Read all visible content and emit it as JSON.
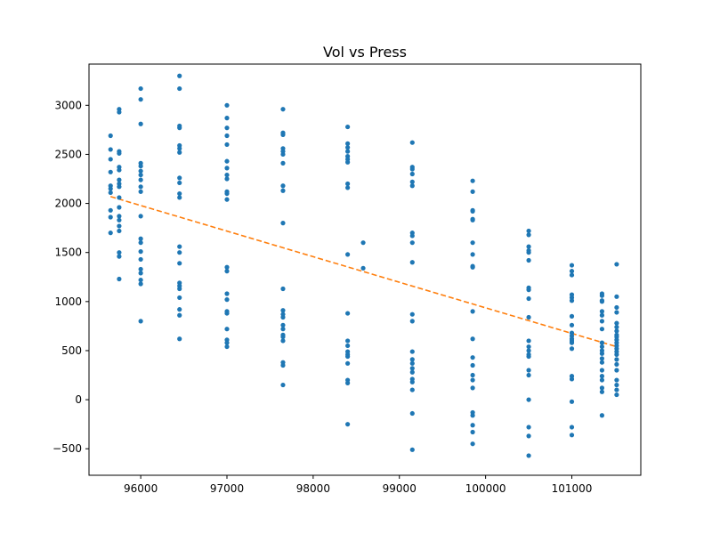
{
  "chart_data": {
    "type": "scatter",
    "title": "Vol vs Press",
    "xlabel": "",
    "ylabel": "",
    "xlim": [
      95400,
      101800
    ],
    "ylim": [
      -770,
      3420
    ],
    "xticks": [
      96000,
      97000,
      98000,
      99000,
      100000,
      101000
    ],
    "yticks": [
      -500,
      0,
      500,
      1000,
      1500,
      2000,
      2500,
      3000
    ],
    "grid": false,
    "colors": {
      "points": "#1f77b4",
      "fit": "#ff7f0e"
    },
    "series": [
      {
        "type": "scatter",
        "points": [
          [
            95650,
            2690
          ],
          [
            95650,
            2550
          ],
          [
            95650,
            2450
          ],
          [
            95650,
            2320
          ],
          [
            95650,
            2180
          ],
          [
            95650,
            2150
          ],
          [
            95650,
            2110
          ],
          [
            95650,
            1930
          ],
          [
            95650,
            1860
          ],
          [
            95650,
            1700
          ],
          [
            95750,
            2960
          ],
          [
            95750,
            2930
          ],
          [
            95750,
            2530
          ],
          [
            95750,
            2510
          ],
          [
            95750,
            2370
          ],
          [
            95750,
            2340
          ],
          [
            95750,
            2240
          ],
          [
            95750,
            2200
          ],
          [
            95750,
            2170
          ],
          [
            95750,
            2060
          ],
          [
            95750,
            1960
          ],
          [
            95750,
            1870
          ],
          [
            95750,
            1830
          ],
          [
            95750,
            1770
          ],
          [
            95750,
            1720
          ],
          [
            95750,
            1500
          ],
          [
            95750,
            1460
          ],
          [
            95750,
            1230
          ],
          [
            96000,
            3170
          ],
          [
            96000,
            3060
          ],
          [
            96000,
            2810
          ],
          [
            96000,
            2410
          ],
          [
            96000,
            2380
          ],
          [
            96000,
            2330
          ],
          [
            96000,
            2290
          ],
          [
            96000,
            2240
          ],
          [
            96000,
            2170
          ],
          [
            96000,
            2120
          ],
          [
            96000,
            1870
          ],
          [
            96000,
            1640
          ],
          [
            96000,
            1600
          ],
          [
            96000,
            1510
          ],
          [
            96000,
            1430
          ],
          [
            96000,
            1330
          ],
          [
            96000,
            1290
          ],
          [
            96000,
            1220
          ],
          [
            96000,
            1180
          ],
          [
            96000,
            800
          ],
          [
            96450,
            3300
          ],
          [
            96450,
            3170
          ],
          [
            96450,
            2790
          ],
          [
            96450,
            2770
          ],
          [
            96450,
            2590
          ],
          [
            96450,
            2560
          ],
          [
            96450,
            2520
          ],
          [
            96450,
            2260
          ],
          [
            96450,
            2210
          ],
          [
            96450,
            2100
          ],
          [
            96450,
            2060
          ],
          [
            96450,
            1560
          ],
          [
            96450,
            1500
          ],
          [
            96450,
            1390
          ],
          [
            96450,
            1190
          ],
          [
            96450,
            1160
          ],
          [
            96450,
            1130
          ],
          [
            96450,
            1040
          ],
          [
            96450,
            920
          ],
          [
            96450,
            860
          ],
          [
            96450,
            620
          ],
          [
            97000,
            3000
          ],
          [
            97000,
            2870
          ],
          [
            97000,
            2770
          ],
          [
            97000,
            2690
          ],
          [
            97000,
            2600
          ],
          [
            97000,
            2430
          ],
          [
            97000,
            2360
          ],
          [
            97000,
            2290
          ],
          [
            97000,
            2250
          ],
          [
            97000,
            2120
          ],
          [
            97000,
            2100
          ],
          [
            97000,
            2040
          ],
          [
            97000,
            1350
          ],
          [
            97000,
            1310
          ],
          [
            97000,
            1080
          ],
          [
            97000,
            1020
          ],
          [
            97000,
            900
          ],
          [
            97000,
            880
          ],
          [
            97000,
            720
          ],
          [
            97000,
            610
          ],
          [
            97000,
            580
          ],
          [
            97000,
            540
          ],
          [
            97650,
            2960
          ],
          [
            97650,
            2720
          ],
          [
            97650,
            2700
          ],
          [
            97650,
            2560
          ],
          [
            97650,
            2530
          ],
          [
            97650,
            2500
          ],
          [
            97650,
            2410
          ],
          [
            97650,
            2180
          ],
          [
            97650,
            2130
          ],
          [
            97650,
            1800
          ],
          [
            97650,
            1130
          ],
          [
            97650,
            910
          ],
          [
            97650,
            870
          ],
          [
            97650,
            840
          ],
          [
            97650,
            760
          ],
          [
            97650,
            720
          ],
          [
            97650,
            660
          ],
          [
            97650,
            640
          ],
          [
            97650,
            600
          ],
          [
            97650,
            380
          ],
          [
            97650,
            350
          ],
          [
            97650,
            150
          ],
          [
            98400,
            2780
          ],
          [
            98400,
            2610
          ],
          [
            98400,
            2570
          ],
          [
            98400,
            2530
          ],
          [
            98400,
            2480
          ],
          [
            98400,
            2450
          ],
          [
            98400,
            2420
          ],
          [
            98400,
            2200
          ],
          [
            98400,
            2160
          ],
          [
            98400,
            1480
          ],
          [
            98400,
            880
          ],
          [
            98400,
            600
          ],
          [
            98400,
            550
          ],
          [
            98400,
            490
          ],
          [
            98400,
            460
          ],
          [
            98400,
            440
          ],
          [
            98400,
            370
          ],
          [
            98400,
            200
          ],
          [
            98400,
            170
          ],
          [
            98400,
            -250
          ],
          [
            98580,
            1600
          ],
          [
            98580,
            1340
          ],
          [
            99150,
            2620
          ],
          [
            99150,
            2370
          ],
          [
            99150,
            2350
          ],
          [
            99150,
            2300
          ],
          [
            99150,
            2220
          ],
          [
            99150,
            2180
          ],
          [
            99150,
            1700
          ],
          [
            99150,
            1670
          ],
          [
            99150,
            1600
          ],
          [
            99150,
            1400
          ],
          [
            99150,
            870
          ],
          [
            99150,
            800
          ],
          [
            99150,
            490
          ],
          [
            99150,
            410
          ],
          [
            99150,
            370
          ],
          [
            99150,
            320
          ],
          [
            99150,
            280
          ],
          [
            99150,
            210
          ],
          [
            99150,
            180
          ],
          [
            99150,
            100
          ],
          [
            99150,
            -140
          ],
          [
            99150,
            -510
          ],
          [
            99850,
            2230
          ],
          [
            99850,
            2120
          ],
          [
            99850,
            1930
          ],
          [
            99850,
            1920
          ],
          [
            99850,
            1840
          ],
          [
            99850,
            1830
          ],
          [
            99850,
            1600
          ],
          [
            99850,
            1480
          ],
          [
            99850,
            1360
          ],
          [
            99850,
            1350
          ],
          [
            99850,
            900
          ],
          [
            99850,
            620
          ],
          [
            99850,
            430
          ],
          [
            99850,
            350
          ],
          [
            99850,
            250
          ],
          [
            99850,
            200
          ],
          [
            99850,
            120
          ],
          [
            99850,
            -130
          ],
          [
            99850,
            -160
          ],
          [
            99850,
            -260
          ],
          [
            99850,
            -330
          ],
          [
            99850,
            -450
          ],
          [
            100500,
            1720
          ],
          [
            100500,
            1680
          ],
          [
            100500,
            1560
          ],
          [
            100500,
            1520
          ],
          [
            100500,
            1500
          ],
          [
            100500,
            1420
          ],
          [
            100500,
            1140
          ],
          [
            100500,
            1120
          ],
          [
            100500,
            1030
          ],
          [
            100500,
            840
          ],
          [
            100500,
            600
          ],
          [
            100500,
            540
          ],
          [
            100500,
            500
          ],
          [
            100500,
            460
          ],
          [
            100500,
            440
          ],
          [
            100500,
            300
          ],
          [
            100500,
            250
          ],
          [
            100500,
            0
          ],
          [
            100500,
            -280
          ],
          [
            100500,
            -370
          ],
          [
            100500,
            -570
          ],
          [
            101000,
            1370
          ],
          [
            101000,
            1310
          ],
          [
            101000,
            1270
          ],
          [
            101000,
            1070
          ],
          [
            101000,
            1040
          ],
          [
            101000,
            1010
          ],
          [
            101000,
            850
          ],
          [
            101000,
            760
          ],
          [
            101000,
            680
          ],
          [
            101000,
            650
          ],
          [
            101000,
            620
          ],
          [
            101000,
            600
          ],
          [
            101000,
            580
          ],
          [
            101000,
            520
          ],
          [
            101000,
            240
          ],
          [
            101000,
            210
          ],
          [
            101000,
            -20
          ],
          [
            101000,
            -280
          ],
          [
            101000,
            -360
          ],
          [
            101350,
            1080
          ],
          [
            101350,
            1060
          ],
          [
            101350,
            1010
          ],
          [
            101350,
            1000
          ],
          [
            101350,
            900
          ],
          [
            101350,
            860
          ],
          [
            101350,
            800
          ],
          [
            101350,
            720
          ],
          [
            101350,
            580
          ],
          [
            101350,
            540
          ],
          [
            101350,
            500
          ],
          [
            101350,
            470
          ],
          [
            101350,
            420
          ],
          [
            101350,
            380
          ],
          [
            101350,
            300
          ],
          [
            101350,
            240
          ],
          [
            101350,
            200
          ],
          [
            101350,
            120
          ],
          [
            101350,
            80
          ],
          [
            101350,
            -160
          ],
          [
            101520,
            1380
          ],
          [
            101520,
            1050
          ],
          [
            101520,
            940
          ],
          [
            101520,
            890
          ],
          [
            101520,
            780
          ],
          [
            101520,
            740
          ],
          [
            101520,
            700
          ],
          [
            101520,
            660
          ],
          [
            101520,
            640
          ],
          [
            101520,
            610
          ],
          [
            101520,
            580
          ],
          [
            101520,
            550
          ],
          [
            101520,
            520
          ],
          [
            101520,
            490
          ],
          [
            101520,
            460
          ],
          [
            101520,
            410
          ],
          [
            101520,
            360
          ],
          [
            101520,
            300
          ],
          [
            101520,
            200
          ],
          [
            101520,
            150
          ],
          [
            101520,
            100
          ],
          [
            101520,
            50
          ]
        ]
      },
      {
        "type": "line",
        "style": "dashed",
        "points": [
          [
            95650,
            2070
          ],
          [
            101520,
            540
          ]
        ]
      }
    ]
  }
}
